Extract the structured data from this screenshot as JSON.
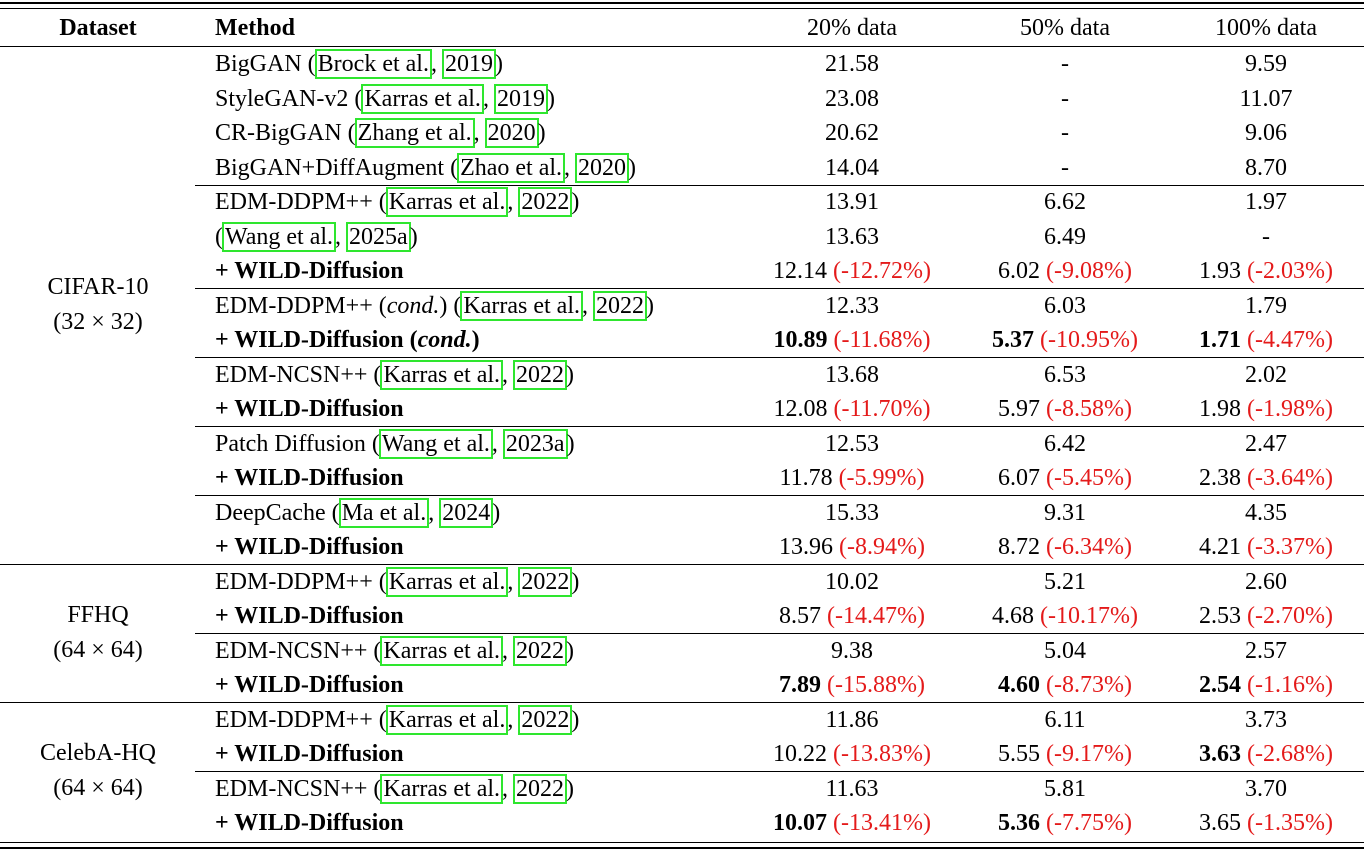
{
  "table": {
    "header": [
      "Dataset",
      "Method",
      "20% data",
      "50% data",
      "100% data"
    ],
    "groups": [
      {
        "dataset": [
          "CIFAR-10",
          "(32 × 32)"
        ],
        "blocks": [
          [
            {
              "method": [
                "BigGAN (",
                {
                  "cite": "Brock et al."
                },
                ", ",
                {
                  "cite": "2019"
                },
                ")"
              ],
              "cells": [
                {
                  "value": "21.58"
                },
                {
                  "value": "-"
                },
                {
                  "value": "9.59"
                }
              ]
            },
            {
              "method": [
                "StyleGAN-v2 (",
                {
                  "cite": "Karras et al."
                },
                ", ",
                {
                  "cite": "2019"
                },
                ")"
              ],
              "cells": [
                {
                  "value": "23.08"
                },
                {
                  "value": "-"
                },
                {
                  "value": "11.07"
                }
              ]
            },
            {
              "method": [
                "CR-BigGAN (",
                {
                  "cite": "Zhang et al."
                },
                ", ",
                {
                  "cite": "2020"
                },
                ")"
              ],
              "cells": [
                {
                  "value": "20.62"
                },
                {
                  "value": "-"
                },
                {
                  "value": "9.06"
                }
              ]
            },
            {
              "method": [
                "BigGAN+DiffAugment (",
                {
                  "cite": "Zhao et al."
                },
                ", ",
                {
                  "cite": "2020"
                },
                ")"
              ],
              "cells": [
                {
                  "value": "14.04"
                },
                {
                  "value": "-"
                },
                {
                  "value": "8.70"
                }
              ]
            }
          ],
          [
            {
              "method": [
                "EDM-DDPM++ (",
                {
                  "cite": "Karras et al."
                },
                ", ",
                {
                  "cite": "2022"
                },
                ")"
              ],
              "cells": [
                {
                  "value": "13.91"
                },
                {
                  "value": "6.62"
                },
                {
                  "value": "1.97"
                }
              ]
            },
            {
              "method": [
                "(",
                {
                  "cite": "Wang et al."
                },
                ", ",
                {
                  "cite": "2025a"
                },
                ")"
              ],
              "cells": [
                {
                  "value": "13.63"
                },
                {
                  "value": "6.49"
                },
                {
                  "value": "-"
                }
              ]
            },
            {
              "method": [
                {
                  "bold": "+ WILD-Diffusion"
                }
              ],
              "cells": [
                {
                  "value": "12.14",
                  "change": "(-12.72%)"
                },
                {
                  "value": "6.02",
                  "change": "(-9.08%)"
                },
                {
                  "value": "1.93",
                  "change": "(-2.03%)"
                }
              ]
            }
          ],
          [
            {
              "method": [
                "EDM-DDPM++ (",
                {
                  "italic": "cond."
                },
                ") (",
                {
                  "cite": "Karras et al."
                },
                ", ",
                {
                  "cite": "2022"
                },
                ")"
              ],
              "cells": [
                {
                  "value": "12.33"
                },
                {
                  "value": "6.03"
                },
                {
                  "value": "1.79"
                }
              ]
            },
            {
              "method": [
                {
                  "bold": "+ WILD-Diffusion ("
                },
                {
                  "bold_italic": "cond."
                },
                {
                  "bold": ")"
                }
              ],
              "cells": [
                {
                  "value": "10.89",
                  "change": "(-11.68%)",
                  "bold": true
                },
                {
                  "value": "5.37",
                  "change": "(-10.95%)",
                  "bold": true
                },
                {
                  "value": "1.71",
                  "change": "(-4.47%)",
                  "bold": true
                }
              ]
            }
          ],
          [
            {
              "method": [
                "EDM-NCSN++ (",
                {
                  "cite": "Karras et al."
                },
                ", ",
                {
                  "cite": "2022"
                },
                ")"
              ],
              "cells": [
                {
                  "value": "13.68"
                },
                {
                  "value": "6.53"
                },
                {
                  "value": "2.02"
                }
              ]
            },
            {
              "method": [
                {
                  "bold": "+ WILD-Diffusion"
                }
              ],
              "cells": [
                {
                  "value": "12.08",
                  "change": "(-11.70%)"
                },
                {
                  "value": "5.97",
                  "change": "(-8.58%)"
                },
                {
                  "value": "1.98",
                  "change": "(-1.98%)"
                }
              ]
            }
          ],
          [
            {
              "method": [
                "Patch Diffusion (",
                {
                  "cite": "Wang et al."
                },
                ", ",
                {
                  "cite": "2023a"
                },
                ")"
              ],
              "cells": [
                {
                  "value": "12.53"
                },
                {
                  "value": "6.42"
                },
                {
                  "value": "2.47"
                }
              ]
            },
            {
              "method": [
                {
                  "bold": "+ WILD-Diffusion"
                }
              ],
              "cells": [
                {
                  "value": "11.78",
                  "change": "(-5.99%)"
                },
                {
                  "value": "6.07",
                  "change": "(-5.45%)"
                },
                {
                  "value": "2.38",
                  "change": "(-3.64%)"
                }
              ]
            }
          ],
          [
            {
              "method": [
                "DeepCache (",
                {
                  "cite": "Ma et al."
                },
                ", ",
                {
                  "cite": "2024"
                },
                ")"
              ],
              "cells": [
                {
                  "value": "15.33"
                },
                {
                  "value": "9.31"
                },
                {
                  "value": "4.35"
                }
              ]
            },
            {
              "method": [
                {
                  "bold": "+ WILD-Diffusion"
                }
              ],
              "cells": [
                {
                  "value": "13.96",
                  "change": "(-8.94%)"
                },
                {
                  "value": "8.72",
                  "change": "(-6.34%)"
                },
                {
                  "value": "4.21",
                  "change": "(-3.37%)"
                }
              ]
            }
          ]
        ]
      },
      {
        "dataset": [
          "FFHQ",
          "(64 × 64)"
        ],
        "blocks": [
          [
            {
              "method": [
                "EDM-DDPM++ (",
                {
                  "cite": "Karras et al."
                },
                ", ",
                {
                  "cite": "2022"
                },
                ")"
              ],
              "cells": [
                {
                  "value": "10.02"
                },
                {
                  "value": "5.21"
                },
                {
                  "value": "2.60"
                }
              ]
            },
            {
              "method": [
                {
                  "bold": "+ WILD-Diffusion"
                }
              ],
              "cells": [
                {
                  "value": "8.57",
                  "change": "(-14.47%)"
                },
                {
                  "value": "4.68",
                  "change": "(-10.17%)"
                },
                {
                  "value": "2.53",
                  "change": "(-2.70%)"
                }
              ]
            }
          ],
          [
            {
              "method": [
                "EDM-NCSN++ (",
                {
                  "cite": "Karras et al."
                },
                ", ",
                {
                  "cite": "2022"
                },
                ")"
              ],
              "cells": [
                {
                  "value": "9.38"
                },
                {
                  "value": "5.04"
                },
                {
                  "value": "2.57"
                }
              ]
            },
            {
              "method": [
                {
                  "bold": "+ WILD-Diffusion"
                }
              ],
              "cells": [
                {
                  "value": "7.89",
                  "change": "(-15.88%)",
                  "bold": true
                },
                {
                  "value": "4.60",
                  "change": "(-8.73%)",
                  "bold": true
                },
                {
                  "value": "2.54",
                  "change": "(-1.16%)",
                  "bold": true
                }
              ]
            }
          ]
        ]
      },
      {
        "dataset": [
          "CelebA-HQ",
          "(64 × 64)"
        ],
        "blocks": [
          [
            {
              "method": [
                "EDM-DDPM++ (",
                {
                  "cite": "Karras et al."
                },
                ", ",
                {
                  "cite": "2022"
                },
                ")"
              ],
              "cells": [
                {
                  "value": "11.86"
                },
                {
                  "value": "6.11"
                },
                {
                  "value": "3.73"
                }
              ]
            },
            {
              "method": [
                {
                  "bold": "+ WILD-Diffusion"
                }
              ],
              "cells": [
                {
                  "value": "10.22",
                  "change": "(-13.83%)"
                },
                {
                  "value": "5.55",
                  "change": "(-9.17%)"
                },
                {
                  "value": "3.63",
                  "change": "(-2.68%)",
                  "bold": true
                }
              ]
            }
          ],
          [
            {
              "method": [
                "EDM-NCSN++ (",
                {
                  "cite": "Karras et al."
                },
                ", ",
                {
                  "cite": "2022"
                },
                ")"
              ],
              "cells": [
                {
                  "value": "11.63"
                },
                {
                  "value": "5.81"
                },
                {
                  "value": "3.70"
                }
              ]
            },
            {
              "method": [
                {
                  "bold": "+ WILD-Diffusion"
                }
              ],
              "cells": [
                {
                  "value": "10.07",
                  "change": "(-13.41%)",
                  "bold": true
                },
                {
                  "value": "5.36",
                  "change": "(-7.75%)",
                  "bold": true
                },
                {
                  "value": "3.65",
                  "change": "(-1.35%)"
                }
              ]
            }
          ]
        ]
      }
    ]
  }
}
